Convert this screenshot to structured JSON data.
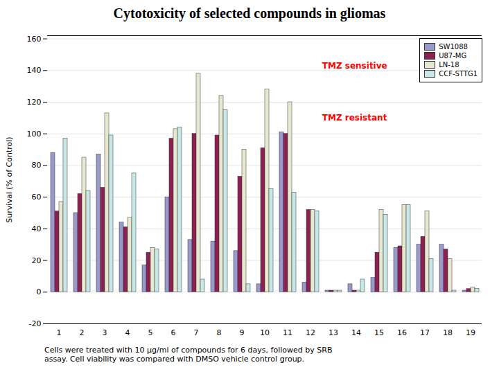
{
  "chart_data": {
    "type": "bar",
    "title": "Cytotoxicity of selected compounds in gliomas",
    "ylabel": "Survival (% of Control)",
    "categories": [
      "1",
      "2",
      "3",
      "4",
      "5",
      "6",
      "7",
      "8",
      "9",
      "10",
      "11",
      "12",
      "13",
      "14",
      "15",
      "16",
      "17",
      "18",
      "19"
    ],
    "series": [
      {
        "name": "SW1088",
        "color": "#9999cc",
        "values": [
          88,
          50,
          87,
          44,
          17,
          60,
          33,
          32,
          26,
          5,
          101,
          6,
          1,
          5,
          9,
          28,
          30,
          30,
          1
        ]
      },
      {
        "name": "U87-MG",
        "color": "#8b2252",
        "values": [
          51,
          62,
          66,
          41,
          25,
          97,
          100,
          99,
          73,
          91,
          100,
          52,
          1,
          1,
          25,
          29,
          35,
          27,
          2
        ]
      },
      {
        "name": "LN-18",
        "color": "#e8e8d0",
        "values": [
          57,
          85,
          113,
          47,
          28,
          103,
          138,
          124,
          90,
          128,
          120,
          52,
          1,
          1,
          52,
          55,
          51,
          21,
          3
        ]
      },
      {
        "name": "CCF-STTG1",
        "color": "#c8e8e8",
        "values": [
          97,
          64,
          99,
          75,
          27,
          104,
          8,
          115,
          5,
          65,
          63,
          51,
          1,
          8,
          49,
          55,
          21,
          1,
          2
        ]
      }
    ],
    "ylim": [
      -20,
      162
    ],
    "yticks": [
      -20,
      0,
      20,
      40,
      60,
      80,
      100,
      120,
      140,
      160
    ],
    "grid": true,
    "legend": "upper right",
    "annotations": [
      {
        "text": "TMZ sensitive",
        "category": "12",
        "y": 143,
        "color": "red"
      },
      {
        "text": "TMZ resistant",
        "category": "12",
        "y": 110,
        "color": "red"
      }
    ],
    "footer": "Cells were treated with 10 μg/ml of compounds for 6 days, followed by SRB\nassay. Cell viability was compared with DMSO vehicle control group."
  }
}
